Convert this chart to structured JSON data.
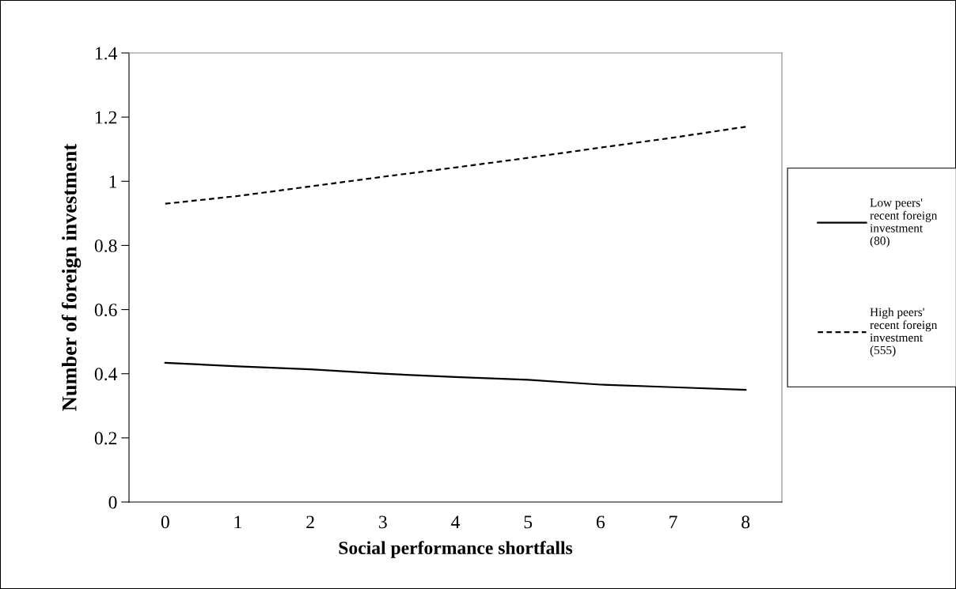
{
  "chart_data": {
    "type": "line",
    "xlabel": "Social performance shortfalls",
    "ylabel": "Number of foreign investment",
    "x": [
      0,
      1,
      2,
      3,
      4,
      5,
      6,
      7,
      8
    ],
    "series": [
      {
        "name": "Low peers' recent foreign investment (80)",
        "color": "#000000",
        "line_style": "solid",
        "values": [
          0.434,
          0.423,
          0.414,
          0.4,
          0.39,
          0.381,
          0.366,
          0.358,
          0.35
        ]
      },
      {
        "name": "High peers' recent foreign investment (555)",
        "color": "#000000",
        "line_style": "dashed",
        "values": [
          0.93,
          0.954,
          0.984,
          1.014,
          1.043,
          1.073,
          1.105,
          1.136,
          1.17
        ]
      }
    ],
    "xlim": [
      -0.5,
      8.5
    ],
    "xticks": [
      0,
      1,
      2,
      3,
      4,
      5,
      6,
      7,
      8
    ],
    "ylim": [
      0,
      1.4
    ],
    "yticks": [
      0,
      0.2,
      0.4,
      0.6,
      0.8,
      1,
      1.2,
      1.4
    ],
    "grid": false,
    "legend": "right",
    "marker": "none"
  }
}
